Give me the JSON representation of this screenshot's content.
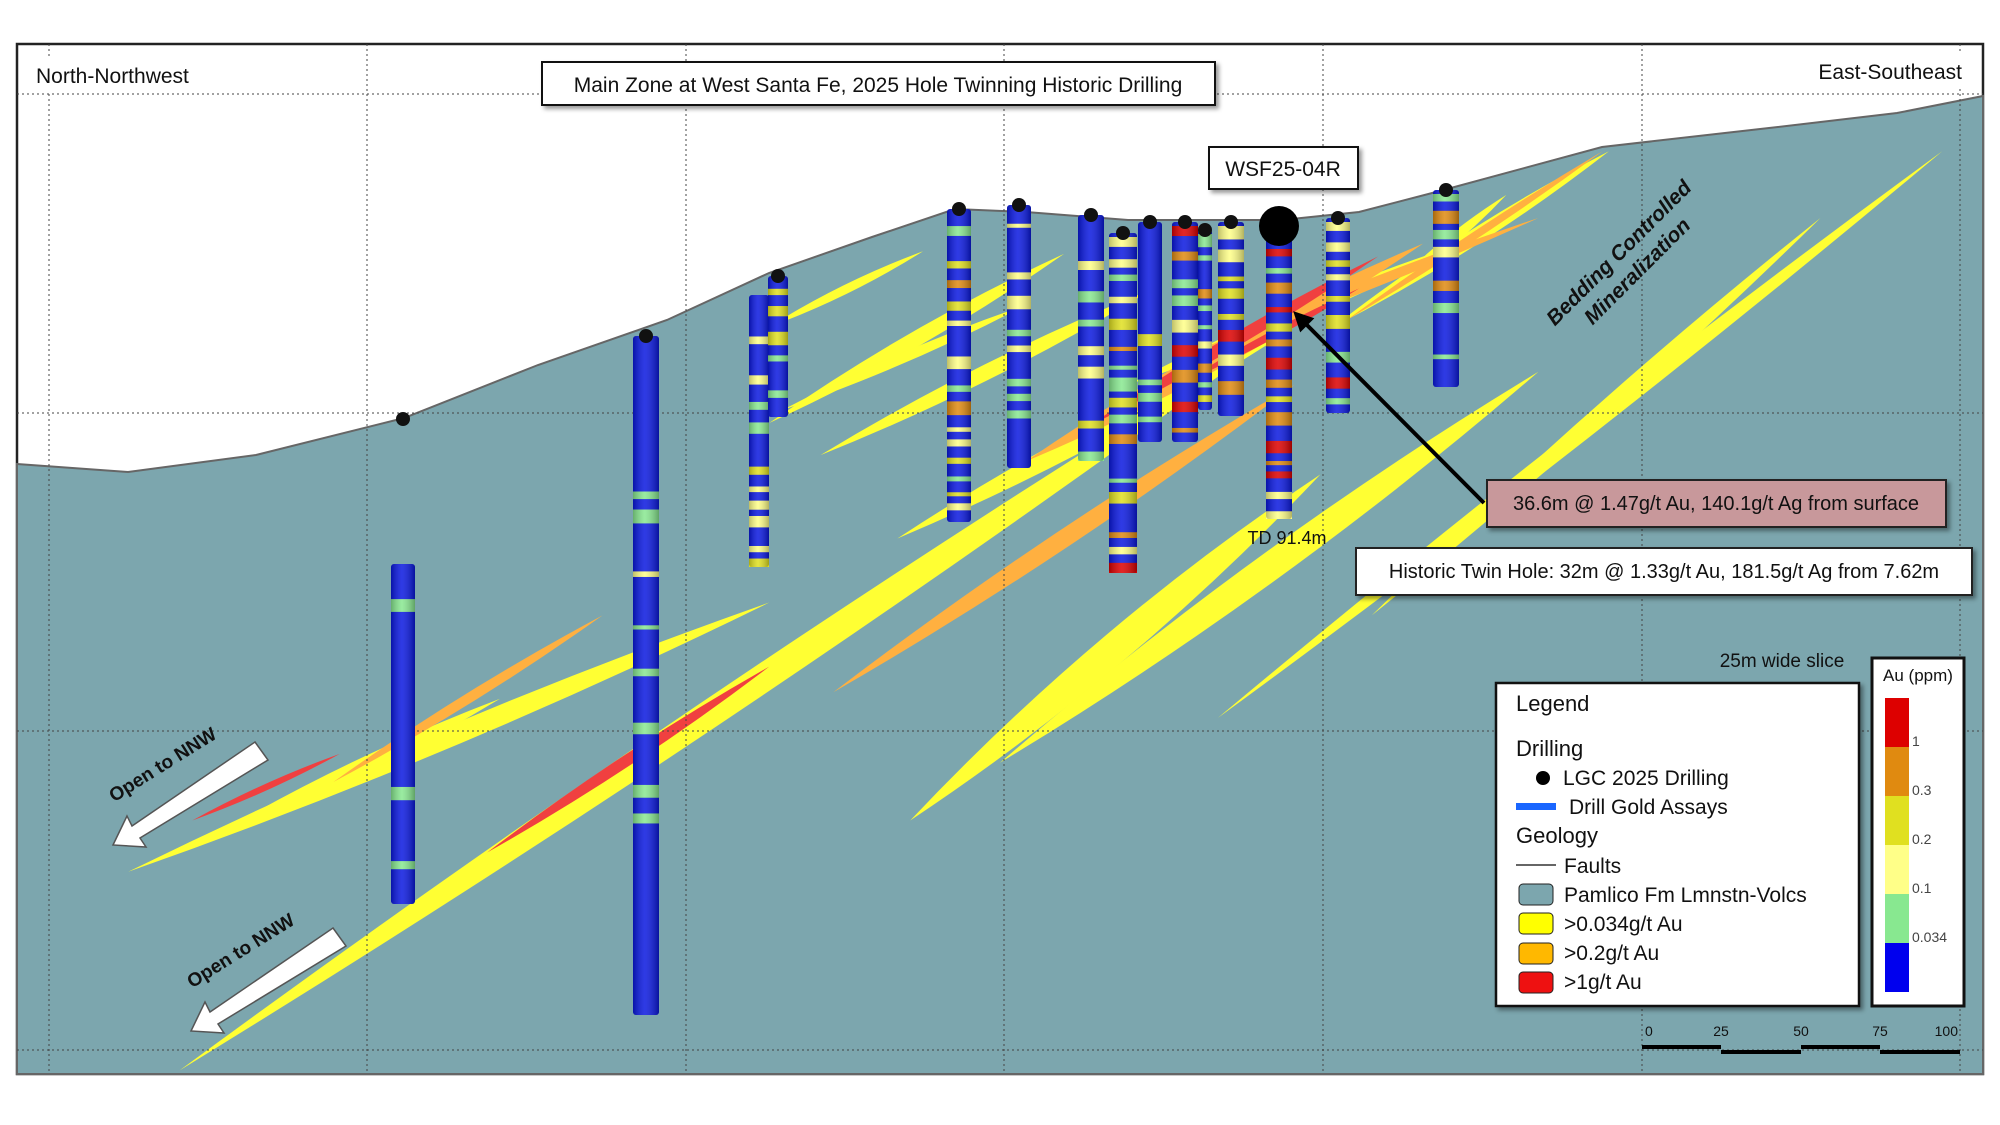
{
  "section": {
    "title": "Main Zone at West Santa Fe, 2025 Hole Twinning Historic Drilling",
    "left_direction": "North-Northwest",
    "right_direction": "East-Southeast",
    "hole_label": "WSF25-04R",
    "td_label": "TD 91.4m",
    "bedding_label_line1": "Bedding Controlled",
    "bedding_label_line2": "Mineralization",
    "open_label_1": "Open to NNW",
    "open_label_2": "Open to NNW",
    "slice_label": "25m wide slice"
  },
  "callouts": {
    "new_intercept": "36.6m @ 1.47g/t Au, 140.1g/t Ag from surface",
    "historic_intercept": "Historic Twin Hole: 32m @ 1.33g/t Au, 181.5g/t Ag from 7.62m"
  },
  "legend": {
    "title": "Legend",
    "drilling_heading": "Drilling",
    "drilling_items": [
      {
        "label": "LGC 2025 Drilling",
        "symbol": "black-dot"
      },
      {
        "label": "Drill Gold Assays",
        "symbol": "blue-line"
      }
    ],
    "geology_heading": "Geology",
    "geology_items": [
      {
        "label": "Faults",
        "symbol": "line",
        "color": "#333333"
      },
      {
        "label": "Pamlico Fm Lmnstn-Volcs",
        "symbol": "swatch",
        "color": "#7ca6ae"
      },
      {
        "label": ">0.034g/t Au",
        "symbol": "swatch",
        "color": "#ffff00"
      },
      {
        "label": ">0.2g/t Au",
        "symbol": "swatch",
        "color": "#ffb800"
      },
      {
        "label": ">1g/t Au",
        "symbol": "swatch",
        "color": "#ee1111"
      }
    ]
  },
  "colorbar": {
    "title": "Au (ppm)",
    "ticks": [
      "1",
      "0.3",
      "0.2",
      "0.1",
      "0.034"
    ],
    "colors": [
      "#dd0000",
      "#e08a10",
      "#e0e020",
      "#ffff88",
      "#88e890",
      "#0000ee"
    ]
  },
  "scale_bar": {
    "labels": [
      "0",
      "25",
      "50",
      "75",
      "100"
    ]
  },
  "colors": {
    "host_rock": "#7ca6ae",
    "low_grade": "#ffff33",
    "mid_grade": "#ffb040",
    "high_grade": "#f04040",
    "drill_base": "#0a18e0",
    "callout_fill": "#c8989b"
  }
}
